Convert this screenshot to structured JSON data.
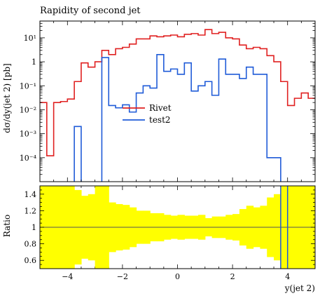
{
  "chart_data": {
    "type": "line",
    "title": "Rapidity of second jet",
    "xlabel": "y(jet 2)",
    "ylabel": "dσ/dy(jet 2) [pb]",
    "ratio_ylabel": "Ratio",
    "xlim": [
      -5,
      5
    ],
    "ylim": [
      1e-05,
      50
    ],
    "yscale": "log",
    "ratio_ylim": [
      0.5,
      1.5
    ],
    "x_ticks": [
      -4,
      -2,
      0,
      2,
      4
    ],
    "y_ticks": [
      {
        "value": 0.0001,
        "label": "10⁻⁴"
      },
      {
        "value": 0.001,
        "label": "10⁻³"
      },
      {
        "value": 0.01,
        "label": "10⁻²"
      },
      {
        "value": 0.1,
        "label": "10⁻¹"
      },
      {
        "value": 1,
        "label": "1"
      },
      {
        "value": 10,
        "label": "10¹"
      }
    ],
    "ratio_ticks": [
      {
        "value": 0.6,
        "label": "0.6"
      },
      {
        "value": 0.8,
        "label": "0.8"
      },
      {
        "value": 1.0,
        "label": "1"
      },
      {
        "value": 1.2,
        "label": "1.2"
      },
      {
        "value": 1.4,
        "label": "1.4"
      }
    ],
    "bin_edges": [
      -5.0,
      -4.75,
      -4.5,
      -4.25,
      -4.0,
      -3.75,
      -3.5,
      -3.25,
      -3.0,
      -2.75,
      -2.5,
      -2.25,
      -2.0,
      -1.75,
      -1.5,
      -1.25,
      -1.0,
      -0.75,
      -0.5,
      -0.25,
      0.0,
      0.25,
      0.5,
      0.75,
      1.0,
      1.25,
      1.5,
      1.75,
      2.0,
      2.25,
      2.5,
      2.75,
      3.0,
      3.25,
      3.5,
      3.75,
      4.0,
      4.25,
      4.5,
      4.75,
      5.0
    ],
    "legend": {
      "placement": "center-left"
    },
    "series": [
      {
        "name": "Rivet",
        "color": "#e02020",
        "values": [
          0.02,
          0.00012,
          0.02,
          0.022,
          0.028,
          0.15,
          0.9,
          0.6,
          1.0,
          3.0,
          2.0,
          3.5,
          4.0,
          5.5,
          9.0,
          9.0,
          12.0,
          11.0,
          12.0,
          13.0,
          11.0,
          14.0,
          15.0,
          13.0,
          22.0,
          15.0,
          17.0,
          10.0,
          9.0,
          5.0,
          3.5,
          4.0,
          3.5,
          1.8,
          1.0,
          0.15,
          0.015,
          0.03,
          0.05,
          0.03
        ]
      },
      {
        "name": "test2",
        "color": "#1f5bd8",
        "values": [
          null,
          null,
          null,
          null,
          null,
          0.002,
          null,
          null,
          null,
          1.5,
          0.015,
          0.012,
          0.016,
          0.008,
          0.05,
          0.1,
          0.08,
          2.0,
          0.4,
          0.5,
          0.3,
          0.9,
          0.06,
          0.1,
          0.15,
          0.04,
          1.3,
          0.3,
          0.3,
          0.2,
          0.6,
          0.3,
          0.3,
          0.0001,
          0.0001,
          null,
          null,
          null,
          null,
          null
        ]
      }
    ],
    "ratio": {
      "reference_line": 1.0,
      "band_color": "#ffff00",
      "band_halfwidth": [
        0.5,
        0.5,
        0.5,
        0.5,
        0.5,
        0.45,
        0.38,
        0.4,
        0.5,
        0.5,
        0.3,
        0.28,
        0.27,
        0.24,
        0.2,
        0.2,
        0.17,
        0.17,
        0.15,
        0.14,
        0.15,
        0.14,
        0.14,
        0.15,
        0.11,
        0.13,
        0.13,
        0.15,
        0.16,
        0.22,
        0.26,
        0.24,
        0.26,
        0.36,
        0.4,
        0.5,
        0.5,
        0.5,
        0.5,
        0.5
      ],
      "test2_lines": [
        {
          "type": "vertical",
          "x": 3.75
        },
        {
          "type": "vertical",
          "x": 4.0
        }
      ]
    }
  }
}
